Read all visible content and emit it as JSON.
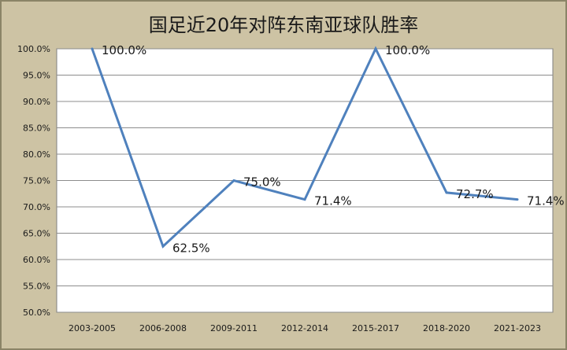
{
  "chart_data": {
    "type": "line",
    "title": "国足近20年对阵东南亚球队胜率",
    "xlabel": "",
    "ylabel": "",
    "categories": [
      "2003-2005",
      "2006-2008",
      "2009-2011",
      "2012-2014",
      "2015-2017",
      "2018-2020",
      "2021-2023"
    ],
    "series": [
      {
        "values": [
          100.0,
          62.5,
          75.0,
          71.4,
          100.0,
          72.7,
          71.4
        ],
        "data_labels": [
          "100.0%",
          "62.5%",
          "75.0%",
          "71.4%",
          "100.0%",
          "72.7%",
          "71.4%"
        ],
        "color": "#4f81bd"
      }
    ],
    "ylim": [
      50.0,
      100.0
    ],
    "y_ticks": [
      "100.0%",
      "95.0%",
      "90.0%",
      "85.0%",
      "80.0%",
      "75.0%",
      "70.0%",
      "65.0%",
      "60.0%",
      "55.0%",
      "50.0%"
    ],
    "grid": true,
    "legend": "none",
    "colors": {
      "frame_background": "#cdc3a4",
      "plot_background": "#ffffff",
      "gridline": "#8c8c8c",
      "line": "#4f81bd",
      "text": "#1a1a1a"
    }
  }
}
